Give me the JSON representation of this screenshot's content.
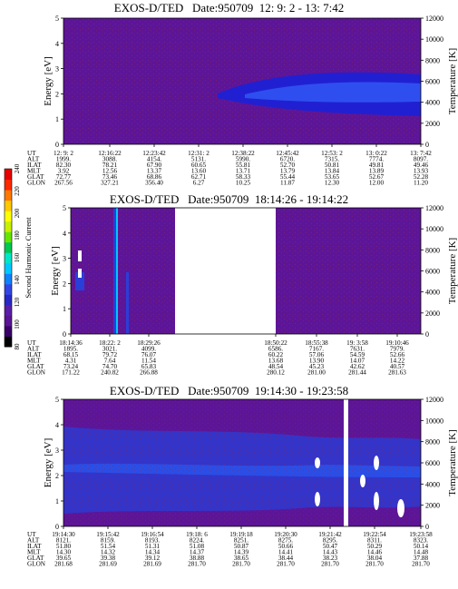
{
  "panels": [
    {
      "title": "EXOS-D/TED   Date:950709  12: 9: 2 - 13: 7:42",
      "ylabel": "Energy [eV]",
      "y2label": "Temperature [K]",
      "rows": [
        {
          "label": "UT",
          "values": [
            "12: 9: 2",
            "12:16:22",
            "12:23:42",
            "12:31: 2",
            "12:38:22",
            "12:45:42",
            "12:53: 2",
            "13: 0:22",
            "13: 7:42"
          ]
        },
        {
          "label": "ALT",
          "values": [
            "1999.",
            "3088.",
            "4154.",
            "5131.",
            "5990.",
            "6720.",
            "7315.",
            "7774.",
            "8097."
          ]
        },
        {
          "label": "ILAT",
          "values": [
            "82.30",
            "78.21",
            "67.90",
            "60.65",
            "55.81",
            "52.70",
            "50.81",
            "49.81",
            "49.46"
          ]
        },
        {
          "label": "MLT",
          "values": [
            "3.92",
            "12.56",
            "13.37",
            "13.60",
            "13.71",
            "13.79",
            "13.84",
            "13.89",
            "13.93"
          ]
        },
        {
          "label": "GLAT",
          "values": [
            "72.77",
            "73.46",
            "68.86",
            "62.71",
            "58.33",
            "55.44",
            "53.65",
            "52.67",
            "52.28"
          ]
        },
        {
          "label": "GLON",
          "values": [
            "267.56",
            "327.21",
            "356.40",
            "6.27",
            "10.25",
            "11.87",
            "12.30",
            "12.00",
            "11.20"
          ]
        }
      ]
    },
    {
      "title": "EXOS-D/TED   Date:950709  18:14:26 - 19:14:22",
      "ylabel": "Energy [eV]",
      "y2label": "Temperature [K]",
      "rows": [
        {
          "label": "UT",
          "values": [
            "18:14:36",
            "18:22: 2",
            "18:29:26",
            "",
            "",
            "18:50:22",
            "18:55:38",
            "19: 3:58",
            "19:10:46"
          ]
        },
        {
          "label": "ALT",
          "values": [
            "1895.",
            "3021.",
            "4099.",
            "",
            "",
            "6586.",
            "7167.",
            "7631.",
            "7979."
          ]
        },
        {
          "label": "ILAT",
          "values": [
            "68.15",
            "79.72",
            "76.07",
            "",
            "",
            "60.22",
            "57.06",
            "54.59",
            "52.66"
          ]
        },
        {
          "label": "MLT",
          "values": [
            "4.31",
            "7.64",
            "11.54",
            "",
            "",
            "13.68",
            "13.90",
            "14.07",
            "14.22"
          ]
        },
        {
          "label": "GLAT",
          "values": [
            "73.24",
            "74.70",
            "65.83",
            "",
            "",
            "48.54",
            "45.23",
            "42.62",
            "40.57"
          ]
        },
        {
          "label": "GLON",
          "values": [
            "171.22",
            "240.82",
            "266.88",
            "",
            "",
            "280.12",
            "281.00",
            "281.44",
            "281.63"
          ]
        }
      ]
    },
    {
      "title": "EXOS-D/TED   Date:950709  19:14:30 - 19:23:58",
      "ylabel": "Energy [eV]",
      "y2label": "Temperature [K]",
      "rows": [
        {
          "label": "UT",
          "values": [
            "19:14:30",
            "19:15:42",
            "19:16:54",
            "19:18: 6",
            "19:19:18",
            "19:20:30",
            "19:21:42",
            "19:22:54",
            "19:23:58"
          ]
        },
        {
          "label": "ALT",
          "values": [
            "8121.",
            "8159.",
            "8193.",
            "8224.",
            "8251.",
            "8275.",
            "8295.",
            "8311.",
            "8323."
          ]
        },
        {
          "label": "ILAT",
          "values": [
            "51.80",
            "51.54",
            "51.31",
            "51.08",
            "50.87",
            "50.66",
            "50.47",
            "50.29",
            "50.14"
          ]
        },
        {
          "label": "MLT",
          "values": [
            "14.30",
            "14.32",
            "14.34",
            "14.37",
            "14.39",
            "14.41",
            "14.43",
            "14.46",
            "14.48"
          ]
        },
        {
          "label": "GLAT",
          "values": [
            "39.65",
            "39.38",
            "39.12",
            "38.88",
            "38.65",
            "38.44",
            "38.23",
            "38.04",
            "37.88"
          ]
        },
        {
          "label": "GLON",
          "values": [
            "281.68",
            "281.69",
            "281.69",
            "281.70",
            "281.70",
            "281.70",
            "281.70",
            "281.70",
            "281.70"
          ]
        }
      ]
    }
  ],
  "colorbar": {
    "label": "Second Harmonic Current",
    "ticks": [
      "80",
      "100",
      "120",
      "140",
      "160",
      "180",
      "200",
      "220",
      "240"
    ],
    "colors": [
      "#000000",
      "#3a006a",
      "#5a1495",
      "#5a1ea8",
      "#2828c8",
      "#3246e6",
      "#0f82ff",
      "#00c8ff",
      "#00e6c8",
      "#00c850",
      "#64e600",
      "#c8f000",
      "#ffff00",
      "#ffc800",
      "#ff7800",
      "#ff2800",
      "#e60000"
    ]
  },
  "chart_data": [
    {
      "type": "heatmap",
      "title": "EXOS-D/TED   Date:950709  12: 9: 2 - 13: 7:42",
      "ylabel": "Energy [eV]",
      "y2label": "Temperature [K]",
      "ylim": [
        0,
        5
      ],
      "y2lim": [
        0,
        12000
      ],
      "yticks": [
        0,
        1,
        2,
        3,
        4,
        5
      ],
      "y2ticks": [
        0,
        2000,
        4000,
        6000,
        8000,
        10000,
        12000
      ],
      "colorbar_label": "Second Harmonic Current",
      "colorbar_range": [
        80,
        240
      ]
    },
    {
      "type": "heatmap",
      "title": "EXOS-D/TED   Date:950709  18:14:26 - 19:14:22",
      "ylabel": "Energy [eV]",
      "y2label": "Temperature [K]",
      "ylim": [
        0,
        5
      ],
      "y2lim": [
        0,
        12000
      ],
      "yticks": [
        0,
        1,
        2,
        3,
        4,
        5
      ],
      "y2ticks": [
        0,
        2000,
        4000,
        6000,
        8000,
        10000,
        12000
      ],
      "colorbar_label": "Second Harmonic Current",
      "colorbar_range": [
        80,
        240
      ]
    },
    {
      "type": "heatmap",
      "title": "EXOS-D/TED   Date:950709  19:14:30 - 19:23:58",
      "ylabel": "Energy [eV]",
      "y2label": "Temperature [K]",
      "ylim": [
        0,
        5
      ],
      "y2lim": [
        0,
        12000
      ],
      "yticks": [
        0,
        1,
        2,
        3,
        4,
        5
      ],
      "y2ticks": [
        0,
        2000,
        4000,
        6000,
        8000,
        10000,
        12000
      ],
      "colorbar_label": "Second Harmonic Current",
      "colorbar_range": [
        80,
        240
      ]
    }
  ]
}
